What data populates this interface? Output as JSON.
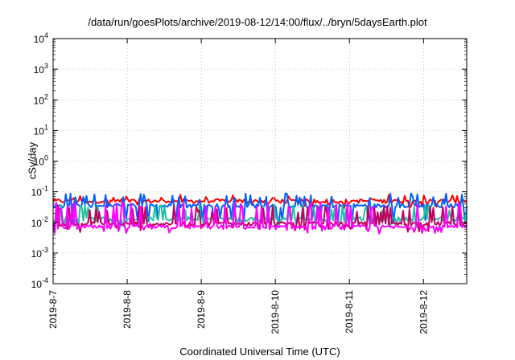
{
  "chart_data": {
    "type": "line",
    "title": "/data/run/goesPlots/archive/2019-08-12/14:00/flux/../bryn/5daysEarth.plot",
    "xlabel": "Coordinated Universal Time (UTC)",
    "ylabel": "cSv/day",
    "yscale": "log",
    "ylim": [
      0.0001,
      10000
    ],
    "yticks": [
      {
        "value": 0.0001,
        "base": "10",
        "exp": "-4"
      },
      {
        "value": 0.001,
        "base": "10",
        "exp": "-3"
      },
      {
        "value": 0.01,
        "base": "10",
        "exp": "-2"
      },
      {
        "value": 0.1,
        "base": "10",
        "exp": "-1"
      },
      {
        "value": 1,
        "base": "10",
        "exp": "0"
      },
      {
        "value": 10,
        "base": "10",
        "exp": "1"
      },
      {
        "value": 100,
        "base": "10",
        "exp": "2"
      },
      {
        "value": 1000,
        "base": "10",
        "exp": "3"
      },
      {
        "value": 10000,
        "base": "10",
        "exp": "4"
      }
    ],
    "xlim": [
      "2019-08-07",
      "2019-08-12 14:00"
    ],
    "xticks": [
      {
        "value": "2019-08-07",
        "label": "2019-8-7"
      },
      {
        "value": "2019-08-08",
        "label": "2019-8-8"
      },
      {
        "value": "2019-08-09",
        "label": "2019-8-9"
      },
      {
        "value": "2019-08-10",
        "label": "2019-8-10"
      },
      {
        "value": "2019-08-11",
        "label": "2019-8-11"
      },
      {
        "value": "2019-08-12",
        "label": "2019-8-12"
      }
    ],
    "grid": true,
    "series": [
      {
        "color": "#ff0000",
        "base": 0.05,
        "spike": 0.08,
        "dip": 0.035
      },
      {
        "color": "#0060ff",
        "base": 0.035,
        "spike": 0.09,
        "dip": 0.012
      },
      {
        "color": "#20c0a0",
        "base": 0.013,
        "spike": 0.04,
        "dip": 0.009
      },
      {
        "color": "#c00060",
        "base": 0.009,
        "spike": 0.035,
        "dip": 0.006
      },
      {
        "color": "#ff00ff",
        "base": 0.007,
        "spike": 0.045,
        "dip": 0.005
      }
    ]
  }
}
